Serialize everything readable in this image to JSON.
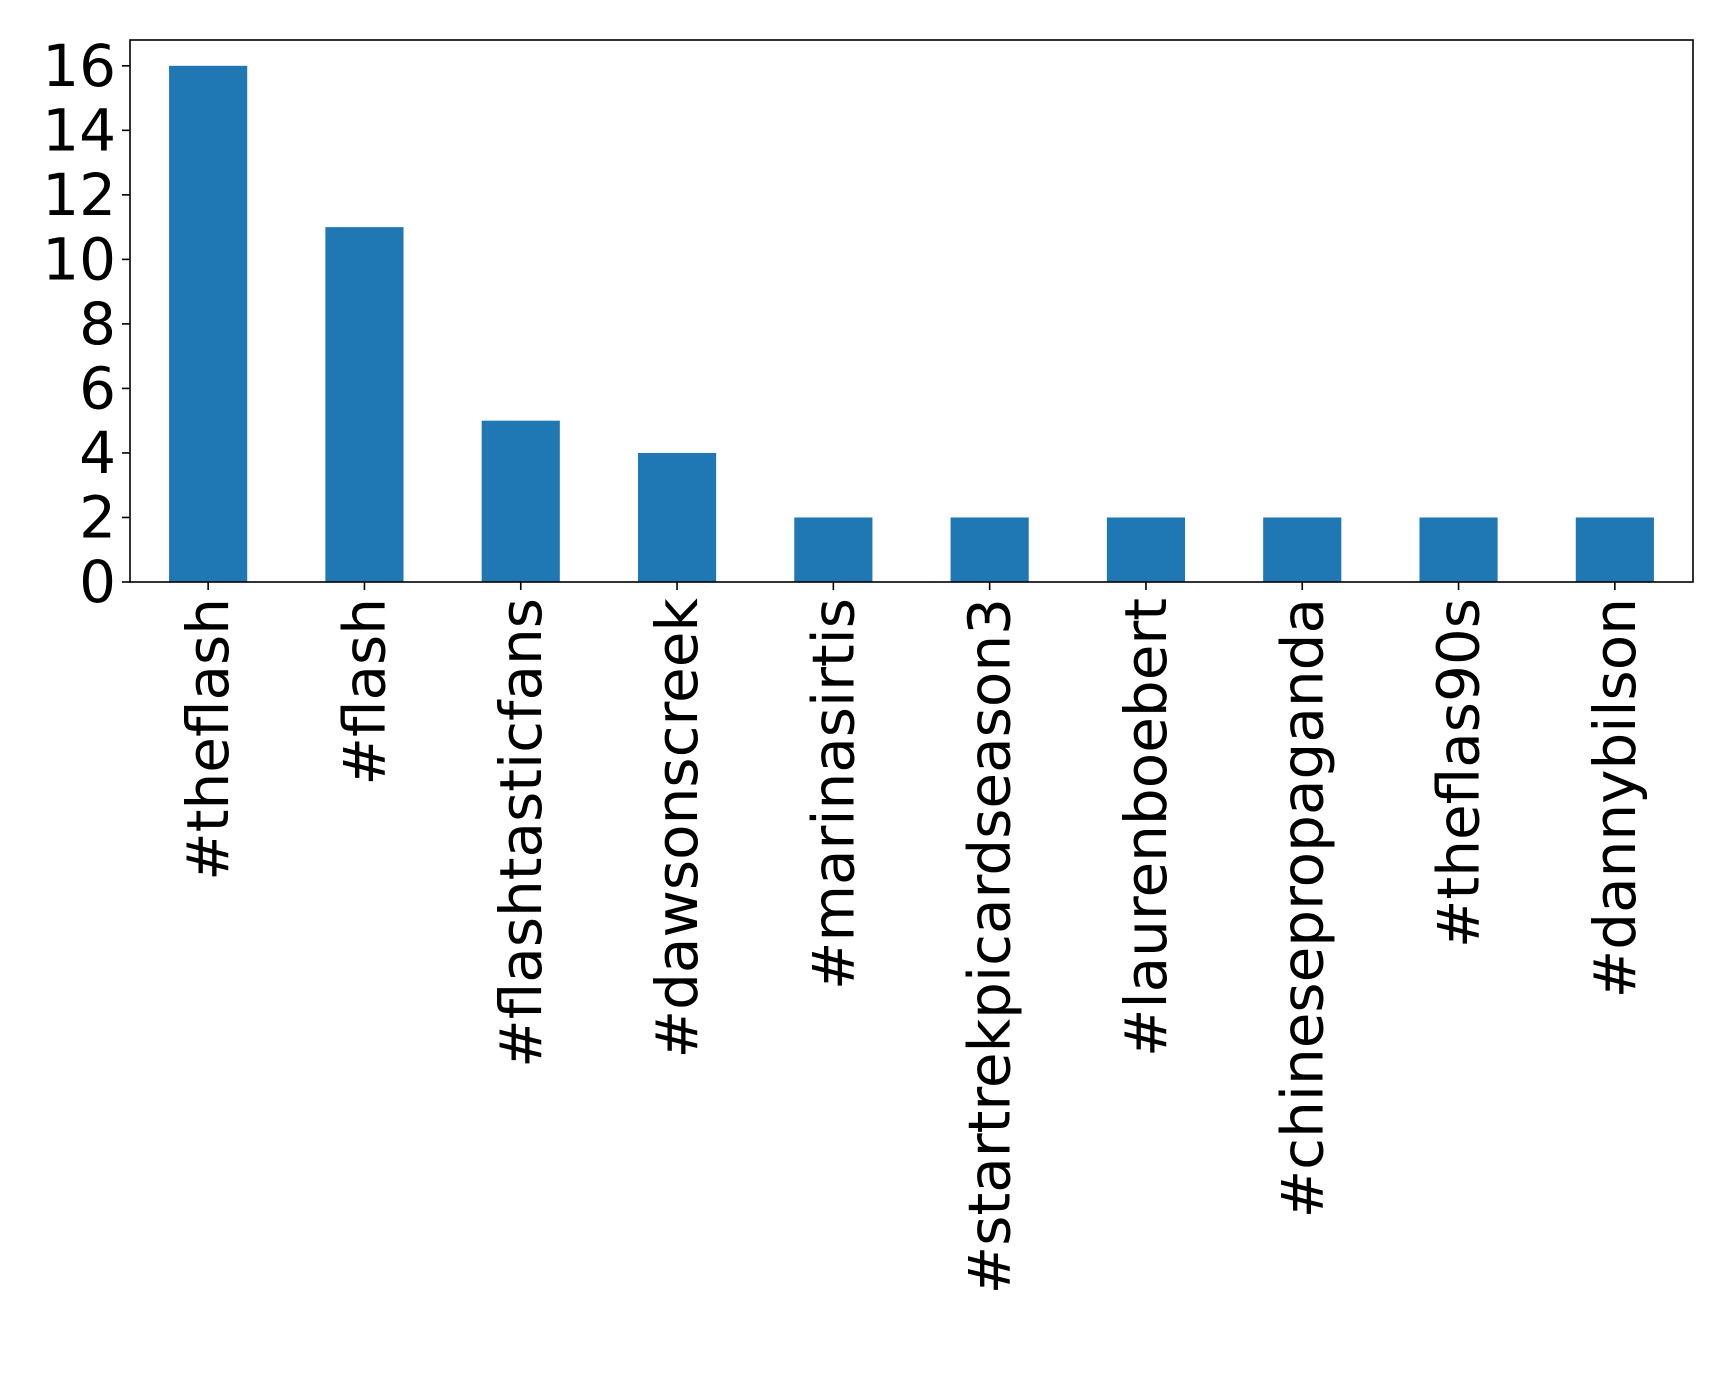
{
  "chart_data": {
    "type": "bar",
    "title": "",
    "xlabel": "",
    "ylabel": "",
    "categories": [
      "#theflash",
      "#flash",
      "#flashtasticfans",
      "#dawsonscreek",
      "#marinasirtis",
      "#startrekpicardseason3",
      "#laurenboebert",
      "#chinesepropaganda",
      "#theflas90s",
      "#dannybilson"
    ],
    "values": [
      16,
      11,
      5,
      4,
      2,
      2,
      2,
      2,
      2,
      2
    ],
    "ylim": [
      0,
      16.8
    ],
    "yticks": [
      0,
      2,
      4,
      6,
      8,
      10,
      12,
      14,
      16
    ],
    "bar_color": "#1f77b4",
    "grid": false,
    "legend": "none"
  }
}
